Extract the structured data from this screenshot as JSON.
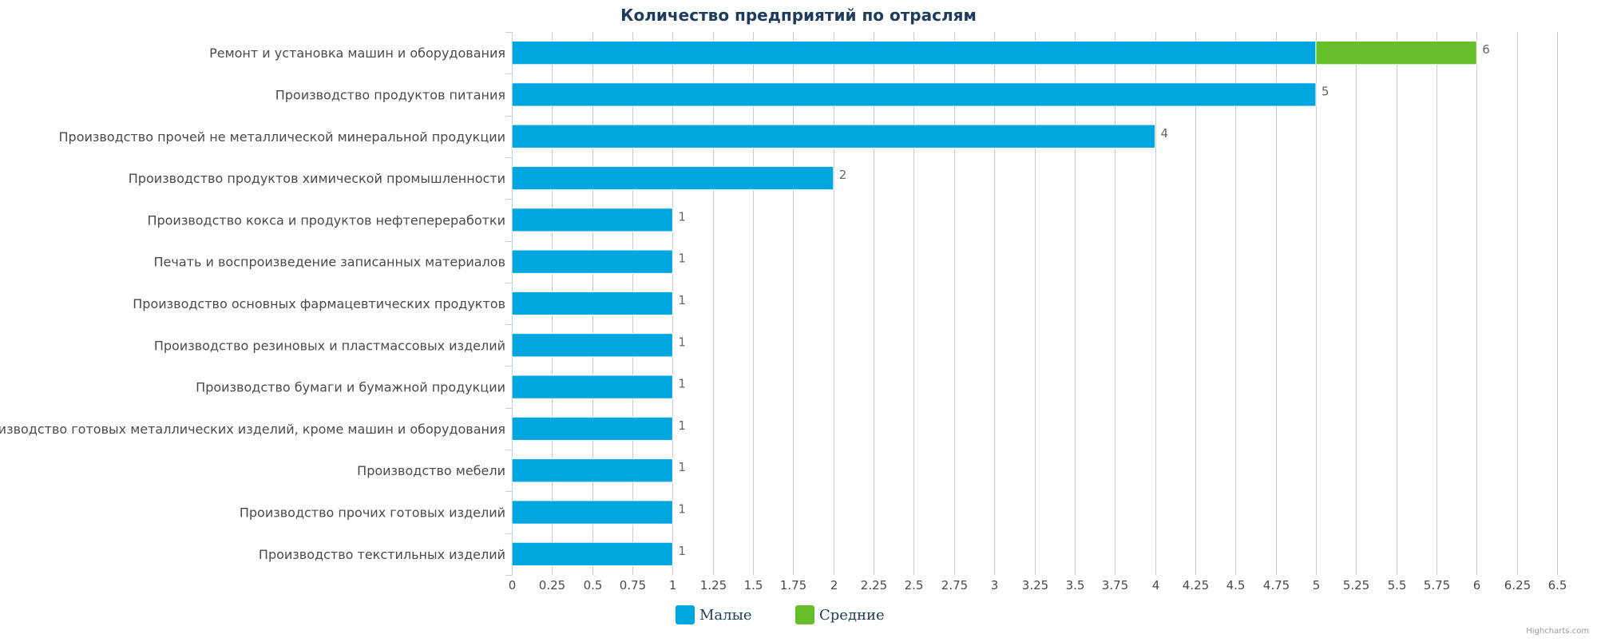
{
  "chart_data": {
    "type": "bar",
    "orientation": "horizontal",
    "stacked": true,
    "title": "Количество предприятий по отраслям",
    "categories": [
      "Ремонт и установка машин и оборудования",
      "Производство продуктов питания",
      "Производство прочей не металлической минеральной продукции",
      "Производство продуктов химической промышленности",
      "Производство кокса и продуктов нефтепереработки",
      "Печать и воспроизведение записанных материалов",
      "Производство основных фармацевтических продуктов",
      "Производство резиновых и пластмассовых изделий",
      "Производство бумаги и бумажной продукции",
      "Производство готовых металлических изделий, кроме машин и оборудования",
      "Производство мебели",
      "Производство прочих готовых изделий",
      "Производство текстильных изделий"
    ],
    "series": [
      {
        "name": "Малые",
        "color": "#00a6e0",
        "values": [
          5,
          5,
          4,
          2,
          1,
          1,
          1,
          1,
          1,
          1,
          1,
          1,
          1
        ]
      },
      {
        "name": "Средние",
        "color": "#66bf2a",
        "values": [
          1,
          0,
          0,
          0,
          0,
          0,
          0,
          0,
          0,
          0,
          0,
          0,
          0
        ]
      }
    ],
    "totals": [
      "6",
      "5",
      "4",
      "2",
      "1",
      "1",
      "1",
      "1",
      "1",
      "1",
      "1",
      "1",
      "1"
    ],
    "xlim": [
      0,
      6.5
    ],
    "ticks": [
      "0",
      "0.25",
      "0.5",
      "0.75",
      "1",
      "1.25",
      "1.5",
      "1.75",
      "2",
      "2.25",
      "2.5",
      "2.75",
      "3",
      "3.25",
      "3.5",
      "3.75",
      "4",
      "4.25",
      "4.5",
      "4.75",
      "5",
      "5.25",
      "5.5",
      "5.75",
      "6",
      "6.25",
      "6.5"
    ],
    "grid": true,
    "legend_position": "bottom-center"
  },
  "credit": "Highcharts.com"
}
